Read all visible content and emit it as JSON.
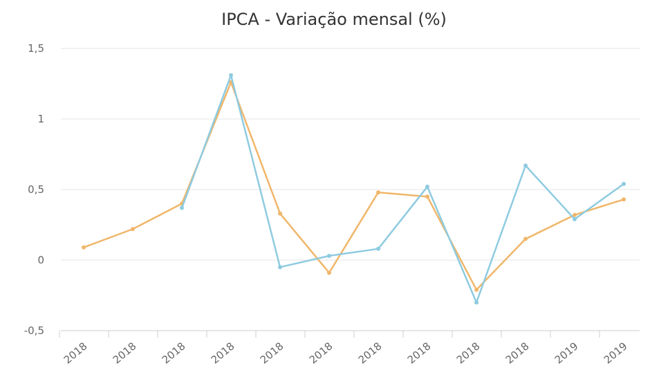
{
  "chart_data": {
    "type": "line",
    "title": "IPCA - Variação mensal (%)",
    "xlabel": "",
    "ylabel": "",
    "ylim": [
      -0.5,
      1.5
    ],
    "yticks": [
      {
        "value": 1.5,
        "label": "1,5"
      },
      {
        "value": 1,
        "label": "1"
      },
      {
        "value": 0.5,
        "label": "0,5"
      },
      {
        "value": 0,
        "label": "0"
      },
      {
        "value": -0.5,
        "label": "-0,5"
      }
    ],
    "categories": [
      "2018",
      "2018",
      "2018",
      "2018",
      "2018",
      "2018",
      "2018",
      "2018",
      "2018",
      "2018",
      "2019",
      "2019"
    ],
    "grid": "horizontal",
    "series": [
      {
        "color": "#f0b66a",
        "values": [
          0.09,
          0.22,
          0.4,
          1.26,
          0.33,
          -0.09,
          0.48,
          0.45,
          -0.21,
          0.15,
          0.32,
          0.43
        ]
      },
      {
        "color": "#8ecbe0",
        "values": [
          null,
          null,
          0.37,
          1.31,
          -0.05,
          0.03,
          0.08,
          0.52,
          -0.3,
          0.67,
          0.29,
          0.54
        ]
      }
    ],
    "colors": {
      "grid": "#e6e6e6",
      "axis": "#cccccc"
    }
  }
}
